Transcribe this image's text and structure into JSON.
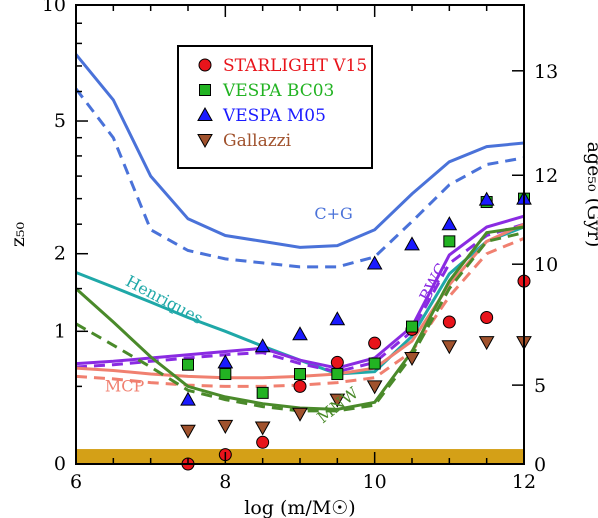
{
  "chart_data": {
    "type": "line",
    "xlabel": "log (m/M☉)",
    "ylabel": "z₅₀",
    "ylabel_right": "age₅₀ (Gyr)",
    "xlim": [
      6,
      12
    ],
    "ylim": [
      0,
      10
    ],
    "yscale": "log(1+z)",
    "x_ticks": [
      6,
      8,
      10,
      12
    ],
    "y_ticks": [
      0,
      1,
      2,
      5,
      10
    ],
    "right_ticks": [
      0,
      5,
      10,
      12,
      13
    ],
    "right_tick_z": [
      0,
      0.51,
      1.84,
      3.52,
      6.8
    ],
    "grid": false,
    "legend_position": "top-center",
    "legend": [
      {
        "label": "STARLIGHT V15",
        "color": "#e8141b",
        "marker": "circle"
      },
      {
        "label": "VESPA BC03",
        "color": "#22b322",
        "marker": "square"
      },
      {
        "label": "VESPA M05",
        "color": "#1a1aff",
        "marker": "triangle-up"
      },
      {
        "label": "Gallazzi",
        "color": "#a0522d",
        "marker": "triangle-down"
      }
    ],
    "series": [
      {
        "name": "C+G",
        "color": "#4a72d9",
        "label_pos": {
          "x": 9.45,
          "y": 2.6
        },
        "solid": {
          "x": [
            6.0,
            6.5,
            7.0,
            7.5,
            8.0,
            8.5,
            9.0,
            9.5,
            10.0,
            10.5,
            11.0,
            11.5,
            12.0
          ],
          "y": [
            7.5,
            5.7,
            3.5,
            2.6,
            2.3,
            2.2,
            2.1,
            2.13,
            2.4,
            3.1,
            3.85,
            4.25,
            4.35
          ]
        },
        "dashed": {
          "x": [
            6.0,
            6.5,
            7.0,
            7.5,
            8.0,
            8.5,
            9.0,
            9.5,
            10.0,
            10.5,
            11.0,
            11.5,
            12.0
          ],
          "y": [
            6.1,
            4.5,
            2.4,
            2.05,
            1.92,
            1.86,
            1.8,
            1.8,
            1.95,
            2.55,
            3.3,
            3.78,
            3.95
          ]
        }
      },
      {
        "name": "Henriques",
        "color": "#1fa8a8",
        "label_pos": {
          "x": 7.15,
          "y": 1.3
        },
        "label_rotate": 28,
        "solid": {
          "x": [
            6.0,
            6.5,
            7.0,
            7.5,
            8.0,
            8.5,
            9.0,
            9.5,
            10.0,
            10.5,
            11.0,
            11.5,
            12.0
          ],
          "y": [
            1.72,
            1.52,
            1.33,
            1.15,
            1.0,
            0.85,
            0.72,
            0.6,
            0.62,
            0.95,
            1.7,
            2.2,
            2.45
          ]
        }
      },
      {
        "name": "BWC",
        "color": "#8a2be2",
        "label_pos": {
          "x": 10.85,
          "y": 1.55
        },
        "label_rotate": -62,
        "solid": {
          "x": [
            6.0,
            6.5,
            7.0,
            7.5,
            8.0,
            8.5,
            9.0,
            9.5,
            10.0,
            10.5,
            11.0,
            11.5,
            12.0
          ],
          "y": [
            0.69,
            0.71,
            0.74,
            0.77,
            0.8,
            0.83,
            0.72,
            0.65,
            0.74,
            1.05,
            1.98,
            2.45,
            2.65
          ]
        },
        "dashed": {
          "x": [
            6.0,
            6.5,
            7.0,
            7.5,
            8.0,
            8.5,
            9.0,
            9.5,
            10.0,
            10.5,
            11.0,
            11.5,
            12.0
          ],
          "y": [
            0.66,
            0.68,
            0.71,
            0.74,
            0.77,
            0.79,
            0.69,
            0.62,
            0.7,
            1.0,
            1.85,
            2.3,
            2.5
          ]
        }
      },
      {
        "name": "MCP",
        "color": "#f08070",
        "label_pos": {
          "x": 6.65,
          "y": 0.46
        },
        "solid": {
          "x": [
            6.0,
            6.5,
            7.0,
            7.5,
            8.0,
            8.5,
            9.0,
            9.5,
            10.0,
            10.5,
            11.0,
            11.5,
            12.0
          ],
          "y": [
            0.65,
            0.63,
            0.6,
            0.58,
            0.57,
            0.57,
            0.58,
            0.6,
            0.65,
            0.9,
            1.55,
            2.2,
            2.5
          ]
        },
        "dashed": {
          "x": [
            6.0,
            6.5,
            7.0,
            7.5,
            8.0,
            8.5,
            9.0,
            9.5,
            10.0,
            10.5,
            11.0,
            11.5,
            12.0
          ],
          "y": [
            0.58,
            0.56,
            0.53,
            0.51,
            0.5,
            0.5,
            0.51,
            0.53,
            0.57,
            0.8,
            1.4,
            2.0,
            2.25
          ]
        }
      },
      {
        "name": "MNW",
        "color": "#4a8a2a",
        "label_pos": {
          "x": 9.55,
          "y": 0.33
        },
        "label_rotate": -38,
        "solid": {
          "x": [
            6.0,
            6.5,
            7.0,
            7.5,
            8.0,
            8.5,
            9.0,
            9.5,
            10.0,
            10.5,
            11.0,
            11.5,
            12.0
          ],
          "y": [
            1.5,
            1.1,
            0.75,
            0.5,
            0.42,
            0.37,
            0.34,
            0.33,
            0.38,
            0.8,
            1.6,
            2.35,
            2.45
          ]
        },
        "dashed": {
          "x": [
            6.0,
            6.5,
            7.0,
            7.5,
            8.0,
            8.5,
            9.0,
            9.5,
            10.0,
            10.5,
            11.0,
            11.5,
            12.0
          ],
          "y": [
            1.08,
            0.86,
            0.66,
            0.47,
            0.4,
            0.35,
            0.32,
            0.32,
            0.36,
            0.76,
            1.5,
            2.2,
            2.35
          ]
        }
      }
    ],
    "points": [
      {
        "name": "STARLIGHT V15",
        "marker": "circle",
        "color": "#e8141b",
        "x": [
          7.5,
          8.0,
          8.5,
          9.0,
          9.5,
          10.0,
          10.5,
          11.0,
          11.5,
          12.0
        ],
        "y": [
          0.0,
          0.05,
          0.12,
          0.5,
          0.7,
          0.88,
          1.02,
          1.1,
          1.15,
          1.6
        ]
      },
      {
        "name": "VESPA BC03",
        "marker": "square",
        "color": "#22b322",
        "x": [
          7.5,
          8.0,
          8.5,
          9.0,
          9.5,
          10.0,
          10.5,
          11.0,
          11.5,
          12.0
        ],
        "y": [
          0.68,
          0.6,
          0.45,
          0.6,
          0.6,
          0.69,
          1.05,
          2.2,
          2.93,
          3.0
        ]
      },
      {
        "name": "VESPA M05",
        "marker": "triangle-up",
        "color": "#1a1aff",
        "x": [
          7.5,
          8.0,
          8.5,
          9.0,
          9.5,
          10.0,
          10.5,
          11.0,
          11.5,
          12.0
        ],
        "y": [
          0.4,
          0.7,
          0.85,
          0.97,
          1.13,
          1.85,
          2.15,
          2.5,
          2.98,
          3.0
        ]
      },
      {
        "name": "Gallazzi",
        "marker": "triangle-down",
        "color": "#a0522d",
        "x": [
          7.5,
          8.0,
          8.5,
          9.0,
          9.5,
          10.0,
          10.5,
          11.0,
          11.5,
          12.0
        ],
        "y": [
          0.19,
          0.22,
          0.21,
          0.3,
          0.4,
          0.5,
          0.74,
          0.85,
          0.89,
          0.89
        ]
      }
    ],
    "band": {
      "color": "#d4a017",
      "y_range": [
        0.0,
        0.07
      ]
    }
  }
}
